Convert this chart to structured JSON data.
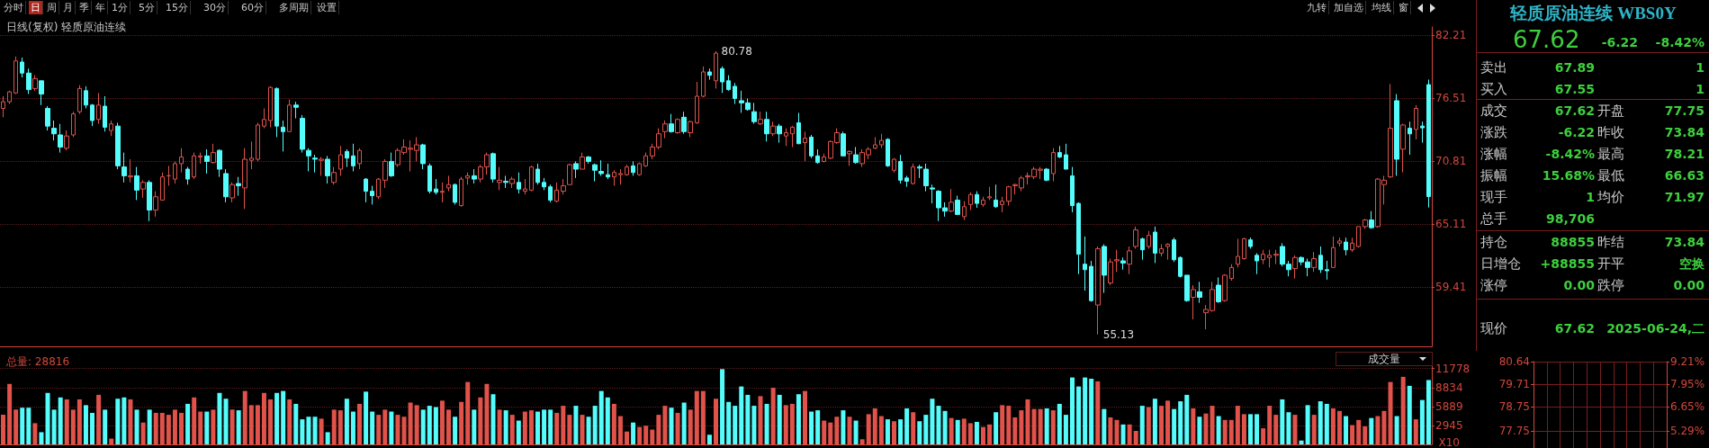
{
  "chart_data": [
    {
      "type": "candlestick",
      "title": "日线(复权) 轻质原油连续",
      "ylim": [
        54.06,
        82.97
      ],
      "yticks": [
        59.41,
        65.11,
        70.81,
        76.51,
        82.21
      ],
      "grid": "y",
      "tick_labels": "y",
      "annotations": [
        "80.78",
        "55.13"
      ],
      "colors": [
        "#e0524a",
        "#e0524a",
        "#e0524a",
        "#54fcfc",
        "#54fcfc",
        "#e0524a",
        "#54fcfc",
        "#54fcfc",
        "#54fcfc",
        "#54fcfc",
        "#e0524a",
        "#e0524a",
        "#e0524a",
        "#54fcfc",
        "#54fcfc",
        "#e0524a",
        "#54fcfc",
        "#e0524a",
        "#54fcfc",
        "#54fcfc",
        "#e0524a",
        "#54fcfc",
        "#e0524a",
        "#54fcfc",
        "#e0524a",
        "#e0524a",
        "#e0524a",
        "#e0524a",
        "#e0524a",
        "#54fcfc",
        "#e0524a",
        "#e0524a",
        "#54fcfc",
        "#e0524a",
        "#54fcfc",
        "#54fcfc",
        "#e0524a",
        "#54fcfc",
        "#e0524a",
        "#e0524a",
        "#e0524a",
        "#e0524a",
        "#e0524a",
        "#54fcfc",
        "#54fcfc",
        "#e0524a",
        "#54fcfc",
        "#54fcfc",
        "#54fcfc",
        "#54fcfc",
        "#e0524a",
        "#54fcfc",
        "#e0524a",
        "#e0524a",
        "#54fcfc",
        "#54fcfc",
        "#e0524a",
        "#54fcfc",
        "#54fcfc",
        "#e0524a",
        "#e0524a",
        "#54fcfc",
        "#e0524a",
        "#e0524a",
        "#e0524a",
        "#e0524a",
        "#54fcfc",
        "#54fcfc",
        "#54fcfc",
        "#e0524a",
        "#e0524a",
        "#54fcfc",
        "#e0524a",
        "#e0524a",
        "#54fcfc",
        "#e0524a",
        "#e0524a",
        "#54fcfc",
        "#e0524a",
        "#54fcfc",
        "#e0524a",
        "#54fcfc",
        "#e0524a",
        "#e0524a",
        "#54fcfc",
        "#54fcfc",
        "#54fcfc",
        "#e0524a",
        "#e0524a",
        "#e0524a",
        "#54fcfc",
        "#e0524a",
        "#54fcfc",
        "#54fcfc",
        "#54fcfc",
        "#54fcfc",
        "#e0524a",
        "#e0524a",
        "#e0524a",
        "#54fcfc",
        "#e0524a",
        "#e0524a",
        "#e0524a",
        "#e0524a",
        "#e0524a",
        "#54fcfc",
        "#e0524a",
        "#54fcfc",
        "#e0524a",
        "#e0524a",
        "#e0524a",
        "#54fcfc",
        "#e0524a",
        "#54fcfc",
        "#54fcfc",
        "#54fcfc",
        "#54fcfc",
        "#54fcfc",
        "#54fcfc",
        "#e0524a",
        "#54fcfc",
        "#e0524a",
        "#54fcfc",
        "#e0524a",
        "#e0524a",
        "#54fcfc",
        "#e0524a",
        "#54fcfc",
        "#54fcfc",
        "#e0524a",
        "#e0524a",
        "#e0524a",
        "#54fcfc",
        "#e0524a",
        "#54fcfc",
        "#e0524a",
        "#e0524a",
        "#e0524a",
        "#e0524a",
        "#54fcfc",
        "#e0524a",
        "#54fcfc",
        "#54fcfc",
        "#e0524a",
        "#54fcfc",
        "#54fcfc",
        "#54fcfc",
        "#54fcfc",
        "#54fcfc",
        "#e0524a",
        "#54fcfc",
        "#e0524a",
        "#e0524a",
        "#54fcfc",
        "#e0524a",
        "#e0524a",
        "#54fcfc",
        "#e0524a",
        "#e0524a",
        "#e0524a",
        "#e0524a",
        "#e0524a",
        "#e0524a",
        "#e0524a",
        "#54fcfc",
        "#e0524a",
        "#54fcfc",
        "#54fcfc",
        "#54fcfc",
        "#54fcfc",
        "#54fcfc",
        "#54fcfc",
        "#e0524a",
        "#54fcfc",
        "#e0524a",
        "#e0524a",
        "#54fcfc",
        "#e0524a",
        "#e0524a",
        "#54fcfc",
        "#e0524a",
        "#54fcfc",
        "#e0524a",
        "#e0524a",
        "#54fcfc",
        "#54fcfc",
        "#54fcfc",
        "#e0524a",
        "#54fcfc",
        "#e0524a",
        "#e0524a",
        "#54fcfc",
        "#e0524a",
        "#e0524a",
        "#e0524a",
        "#e0524a",
        "#54fcfc",
        "#54fcfc",
        "#e0524a",
        "#e0524a",
        "#e0524a",
        "#54fcfc",
        "#54fcfc",
        "#e0524a",
        "#54fcfc",
        "#54fcfc",
        "#e0524a",
        "#54fcfc",
        "#54fcfc",
        "#e0524a",
        "#e0524a",
        "#54fcfc",
        "#e0524a",
        "#e0524a",
        "#e0524a",
        "#54fcfc",
        "#e0524a",
        "#e0524a",
        "#e0524a",
        "#54fcfc",
        "#e0524a",
        "#54fcfc",
        "#e0524a",
        "#54fcfc",
        "#54fcfc"
      ],
      "categories": [
        null,
        null,
        null,
        null,
        null,
        null,
        null,
        null,
        null,
        null,
        null,
        null,
        null,
        null,
        null,
        null,
        null,
        null,
        null,
        null,
        null,
        null,
        null,
        null,
        null,
        null,
        null,
        null,
        null,
        null,
        null,
        null,
        null,
        null,
        null,
        null,
        null,
        null,
        null,
        null,
        null,
        null,
        null,
        null,
        null,
        null,
        null,
        null,
        null,
        null,
        null,
        null,
        null,
        null,
        null,
        null,
        null,
        null,
        null,
        null,
        null,
        null,
        null,
        null,
        null,
        null,
        null,
        null,
        null,
        null,
        null,
        null,
        null,
        null,
        null,
        null,
        null,
        null,
        null,
        null,
        null,
        null,
        null,
        null,
        null,
        null,
        null,
        null,
        null,
        null,
        null,
        null,
        null,
        null,
        null,
        null,
        null,
        null,
        null,
        null,
        null,
        null,
        null,
        null,
        null,
        null,
        null,
        null,
        null,
        null,
        null,
        null,
        null,
        null,
        null,
        null,
        null,
        null,
        null,
        null,
        null,
        null,
        null,
        null,
        null,
        null,
        null,
        null,
        null,
        null,
        null,
        null,
        null,
        null,
        null,
        null,
        null,
        null,
        null,
        null,
        null,
        null,
        null,
        null,
        null,
        null,
        null,
        null,
        null,
        null,
        null,
        null,
        null,
        null,
        null,
        null,
        null,
        null,
        null,
        null,
        null,
        null,
        null,
        null,
        null,
        null,
        null,
        null,
        null,
        null,
        null,
        null,
        null,
        null,
        null,
        null,
        null,
        null,
        null,
        null,
        null,
        null,
        null,
        null,
        null,
        null,
        null,
        null,
        null,
        null,
        null,
        null,
        null,
        null,
        null,
        null,
        null,
        null,
        null,
        null,
        null,
        null,
        null,
        null,
        null,
        null,
        null,
        null,
        null,
        null,
        null,
        null,
        null,
        null,
        null,
        null,
        null,
        null,
        null,
        null,
        null,
        null,
        null,
        null,
        null
      ],
      "ohlc": [
        [
          75.6,
          76.7,
          74.8,
          76.2
        ],
        [
          76.2,
          77.2,
          76.0,
          77.1
        ],
        [
          77.0,
          80.3,
          76.9,
          79.9
        ],
        [
          79.8,
          80.2,
          78.4,
          78.8
        ],
        [
          78.8,
          79.2,
          76.9,
          77.3
        ],
        [
          77.4,
          78.6,
          77.2,
          78.3
        ],
        [
          78.1,
          78.1,
          75.9,
          76.9
        ],
        [
          75.6,
          75.8,
          73.6,
          74.0
        ],
        [
          73.8,
          74.5,
          72.7,
          73.3
        ],
        [
          73.2,
          74.2,
          71.6,
          72.1
        ],
        [
          72.0,
          73.6,
          71.8,
          73.1
        ],
        [
          73.2,
          75.3,
          73.0,
          75.1
        ],
        [
          75.3,
          77.7,
          75.1,
          77.4
        ],
        [
          77.2,
          77.6,
          75.6,
          75.9
        ],
        [
          75.9,
          76.0,
          74.0,
          74.5
        ],
        [
          74.6,
          77.0,
          74.2,
          75.9
        ],
        [
          75.8,
          76.7,
          73.5,
          73.9
        ],
        [
          73.6,
          74.5,
          73.1,
          74.2
        ],
        [
          74.0,
          74.3,
          70.1,
          70.4
        ],
        [
          70.3,
          71.6,
          68.9,
          69.5
        ],
        [
          69.4,
          71.0,
          68.9,
          69.5
        ],
        [
          69.5,
          70.3,
          67.3,
          68.2
        ],
        [
          68.3,
          69.1,
          67.5,
          68.9
        ],
        [
          68.9,
          69.1,
          65.4,
          66.4
        ],
        [
          66.4,
          68.1,
          65.8,
          67.6
        ],
        [
          67.3,
          69.8,
          67.3,
          69.4
        ],
        [
          69.5,
          70.4,
          68.6,
          69.5
        ],
        [
          69.2,
          70.8,
          68.8,
          70.6
        ],
        [
          70.6,
          72.0,
          69.8,
          71.2
        ],
        [
          70.1,
          70.3,
          68.7,
          69.2
        ],
        [
          69.4,
          71.6,
          69.2,
          71.3
        ],
        [
          71.2,
          71.6,
          70.6,
          71.3
        ],
        [
          71.3,
          71.9,
          69.7,
          70.8
        ],
        [
          70.7,
          72.4,
          70.6,
          71.6
        ],
        [
          71.8,
          71.9,
          69.4,
          70.1
        ],
        [
          69.7,
          70.1,
          67.1,
          67.6
        ],
        [
          67.5,
          68.9,
          67.1,
          68.7
        ],
        [
          68.8,
          69.4,
          67.7,
          68.6
        ],
        [
          68.4,
          72.0,
          66.5,
          71.0
        ],
        [
          70.9,
          72.6,
          70.1,
          71.1
        ],
        [
          71.0,
          74.3,
          70.8,
          74.1
        ],
        [
          74.0,
          75.6,
          73.8,
          74.6
        ],
        [
          74.5,
          77.6,
          73.9,
          77.5
        ],
        [
          77.4,
          77.5,
          73.0,
          74.0
        ],
        [
          73.9,
          74.5,
          71.7,
          73.5
        ],
        [
          73.5,
          76.4,
          73.5,
          75.9
        ],
        [
          75.9,
          76.2,
          74.7,
          75.7
        ],
        [
          74.7,
          75.0,
          71.6,
          71.9
        ],
        [
          71.8,
          72.0,
          69.9,
          71.3
        ],
        [
          71.1,
          71.4,
          69.8,
          71.0
        ],
        [
          70.9,
          71.2,
          69.5,
          71.0
        ],
        [
          71.0,
          71.3,
          68.8,
          69.5
        ],
        [
          68.9,
          70.3,
          68.7,
          69.8
        ],
        [
          70.1,
          72.2,
          69.5,
          71.4
        ],
        [
          71.7,
          71.9,
          70.3,
          71.1
        ],
        [
          71.3,
          72.4,
          69.9,
          70.4
        ],
        [
          70.6,
          72.0,
          70.1,
          71.8
        ],
        [
          69.2,
          69.3,
          67.1,
          68.1
        ],
        [
          68.1,
          68.6,
          66.9,
          67.7
        ],
        [
          67.6,
          69.3,
          67.4,
          69.2
        ],
        [
          69.1,
          71.0,
          68.4,
          70.8
        ],
        [
          70.8,
          71.6,
          69.4,
          69.5
        ],
        [
          70.5,
          72.0,
          70.3,
          71.8
        ],
        [
          71.6,
          72.8,
          71.4,
          72.1
        ],
        [
          71.9,
          72.7,
          69.9,
          72.0
        ],
        [
          71.8,
          73.0,
          70.8,
          72.3
        ],
        [
          72.3,
          72.4,
          70.1,
          70.6
        ],
        [
          70.4,
          70.6,
          67.9,
          68.1
        ],
        [
          68.3,
          69.2,
          67.8,
          68.0
        ],
        [
          68.0,
          68.9,
          67.1,
          68.1
        ],
        [
          68.4,
          69.5,
          68.1,
          68.7
        ],
        [
          68.7,
          68.8,
          66.9,
          67.1
        ],
        [
          66.8,
          69.4,
          66.7,
          69.2
        ],
        [
          69.3,
          69.8,
          68.7,
          69.5
        ],
        [
          69.5,
          70.1,
          68.8,
          69.2
        ],
        [
          69.2,
          70.5,
          68.9,
          70.3
        ],
        [
          70.3,
          71.6,
          69.6,
          71.4
        ],
        [
          71.5,
          71.6,
          68.9,
          69.2
        ],
        [
          68.9,
          70.3,
          68.2,
          69.1
        ],
        [
          69.0,
          69.5,
          68.4,
          68.9
        ],
        [
          68.8,
          69.4,
          68.4,
          69.2
        ],
        [
          68.9,
          69.8,
          67.9,
          68.3
        ],
        [
          68.1,
          69.2,
          67.8,
          68.3
        ],
        [
          68.2,
          70.4,
          68.1,
          70.3
        ],
        [
          70.1,
          70.6,
          68.7,
          68.9
        ],
        [
          68.9,
          69.3,
          68.2,
          68.5
        ],
        [
          68.5,
          68.7,
          67.1,
          67.3
        ],
        [
          67.2,
          68.9,
          67.1,
          68.2
        ],
        [
          68.1,
          69.2,
          67.8,
          68.6
        ],
        [
          68.7,
          70.6,
          68.7,
          70.5
        ],
        [
          70.6,
          70.8,
          69.3,
          70.1
        ],
        [
          70.1,
          71.6,
          70.1,
          71.2
        ],
        [
          71.2,
          71.3,
          70.6,
          70.8
        ],
        [
          70.5,
          70.6,
          69.0,
          70.0
        ],
        [
          69.9,
          70.9,
          69.5,
          69.7
        ],
        [
          69.6,
          70.6,
          69.2,
          69.4
        ],
        [
          69.4,
          70.0,
          68.6,
          69.8
        ],
        [
          69.6,
          70.1,
          68.7,
          69.7
        ],
        [
          69.6,
          70.5,
          69.5,
          70.3
        ],
        [
          70.4,
          70.8,
          69.5,
          69.8
        ],
        [
          69.6,
          70.7,
          69.5,
          70.6
        ],
        [
          70.4,
          71.6,
          70.3,
          71.3
        ],
        [
          71.3,
          72.4,
          71.0,
          72.1
        ],
        [
          72.1,
          73.8,
          71.9,
          73.3
        ],
        [
          73.5,
          74.5,
          72.9,
          74.2
        ],
        [
          74.2,
          75.1,
          73.4,
          73.5
        ],
        [
          73.4,
          74.7,
          73.3,
          74.6
        ],
        [
          74.8,
          75.3,
          73.3,
          73.5
        ],
        [
          73.4,
          74.5,
          73.0,
          74.4
        ],
        [
          74.3,
          78.0,
          74.2,
          76.7
        ],
        [
          76.7,
          79.4,
          76.6,
          78.9
        ],
        [
          78.9,
          79.2,
          78.2,
          78.6
        ],
        [
          78.1,
          80.78,
          77.4,
          80.6
        ],
        [
          79.2,
          79.4,
          77.0,
          78.0
        ],
        [
          78.1,
          78.6,
          77.2,
          77.3
        ],
        [
          77.6,
          77.9,
          76.0,
          76.5
        ],
        [
          76.3,
          77.2,
          75.2,
          76.1
        ],
        [
          76.1,
          76.5,
          75.4,
          75.5
        ],
        [
          75.3,
          76.1,
          74.2,
          74.4
        ],
        [
          74.2,
          75.3,
          74.1,
          74.6
        ],
        [
          74.6,
          75.3,
          72.6,
          73.3
        ],
        [
          73.3,
          74.4,
          73.1,
          74.0
        ],
        [
          74.0,
          74.2,
          72.5,
          73.3
        ],
        [
          73.1,
          73.8,
          72.2,
          73.4
        ],
        [
          73.3,
          74.0,
          72.1,
          73.9
        ],
        [
          74.3,
          75.2,
          72.4,
          72.4
        ],
        [
          72.5,
          73.5,
          70.8,
          72.9
        ],
        [
          73.0,
          73.2,
          71.1,
          71.3
        ],
        [
          71.3,
          71.9,
          70.6,
          70.7
        ],
        [
          70.8,
          71.5,
          70.7,
          71.2
        ],
        [
          71.1,
          72.7,
          71.0,
          72.6
        ],
        [
          72.5,
          73.8,
          72.4,
          73.4
        ],
        [
          73.3,
          73.5,
          71.3,
          71.3
        ],
        [
          71.5,
          71.8,
          70.4,
          71.7
        ],
        [
          71.4,
          72.1,
          70.6,
          70.7
        ],
        [
          70.6,
          71.9,
          70.3,
          71.6
        ],
        [
          71.4,
          72.1,
          71.0,
          71.9
        ],
        [
          72.0,
          73.0,
          71.9,
          72.3
        ],
        [
          72.3,
          73.3,
          72.0,
          72.7
        ],
        [
          72.8,
          72.9,
          70.3,
          70.4
        ],
        [
          70.0,
          71.1,
          69.8,
          71.0
        ],
        [
          70.8,
          71.4,
          68.8,
          69.1
        ],
        [
          69.3,
          69.5,
          68.5,
          69.0
        ],
        [
          68.8,
          70.6,
          68.7,
          70.3
        ],
        [
          70.3,
          70.5,
          69.3,
          70.2
        ],
        [
          70.1,
          70.6,
          68.1,
          68.6
        ],
        [
          68.4,
          68.7,
          67.0,
          68.3
        ],
        [
          68.1,
          68.2,
          65.4,
          66.6
        ],
        [
          66.6,
          67.1,
          65.8,
          66.3
        ],
        [
          66.3,
          68.3,
          66.2,
          67.1
        ],
        [
          67.3,
          67.7,
          66.0,
          66.0
        ],
        [
          65.8,
          67.2,
          65.5,
          66.7
        ],
        [
          66.9,
          68.0,
          66.4,
          67.8
        ],
        [
          67.8,
          68.1,
          66.6,
          67.0
        ],
        [
          66.9,
          67.6,
          66.7,
          67.3
        ],
        [
          67.5,
          68.5,
          67.3,
          67.6
        ],
        [
          67.3,
          68.7,
          66.6,
          66.7
        ],
        [
          66.9,
          67.6,
          66.2,
          67.2
        ],
        [
          67.2,
          68.6,
          66.8,
          68.5
        ],
        [
          68.6,
          68.8,
          67.8,
          68.7
        ],
        [
          68.4,
          69.5,
          68.1,
          69.3
        ],
        [
          69.4,
          69.8,
          68.7,
          69.5
        ],
        [
          69.4,
          70.3,
          69.2,
          70.1
        ],
        [
          70.0,
          70.3,
          69.2,
          70.1
        ],
        [
          70.1,
          70.2,
          69.0,
          69.1
        ],
        [
          69.7,
          72.0,
          69.0,
          71.6
        ],
        [
          71.6,
          72.2,
          71.1,
          71.2
        ],
        [
          71.4,
          72.4,
          70.1,
          70.1
        ],
        [
          69.5,
          70.3,
          66.2,
          66.8
        ],
        [
          67.0,
          67.1,
          60.6,
          62.4
        ],
        [
          61.5,
          64.0,
          59.1,
          61.0
        ],
        [
          61.3,
          61.8,
          58.1,
          58.2
        ],
        [
          57.8,
          63.1,
          55.13,
          62.9
        ],
        [
          63.1,
          63.3,
          58.9,
          60.5
        ],
        [
          59.8,
          62.0,
          59.6,
          61.7
        ],
        [
          61.8,
          62.8,
          60.8,
          61.9
        ],
        [
          61.8,
          62.1,
          61.0,
          61.6
        ],
        [
          61.5,
          63.1,
          60.6,
          62.7
        ],
        [
          63.1,
          64.9,
          62.9,
          64.6
        ],
        [
          63.8,
          63.9,
          61.9,
          62.8
        ],
        [
          63.1,
          64.5,
          62.9,
          64.1
        ],
        [
          64.4,
          64.9,
          61.6,
          62.5
        ],
        [
          62.5,
          63.3,
          62.2,
          62.9
        ],
        [
          63.1,
          63.4,
          61.9,
          63.3
        ],
        [
          63.7,
          63.9,
          61.7,
          61.9
        ],
        [
          62.1,
          62.2,
          60.3,
          60.4
        ],
        [
          60.5,
          60.5,
          58.1,
          58.2
        ],
        [
          58.5,
          59.6,
          56.5,
          59.2
        ],
        [
          59.0,
          59.9,
          58.0,
          58.5
        ],
        [
          57.1,
          57.8,
          55.6,
          57.4
        ],
        [
          57.3,
          59.9,
          57.2,
          59.2
        ],
        [
          59.6,
          60.3,
          58.0,
          58.1
        ],
        [
          58.2,
          60.6,
          58.1,
          60.5
        ],
        [
          60.2,
          61.5,
          60.0,
          61.2
        ],
        [
          61.5,
          63.8,
          61.2,
          62.2
        ],
        [
          62.0,
          63.9,
          61.9,
          63.8
        ],
        [
          63.7,
          63.9,
          62.9,
          63.1
        ],
        [
          62.3,
          62.5,
          60.6,
          61.8
        ],
        [
          61.9,
          62.8,
          61.5,
          62.4
        ],
        [
          62.1,
          62.8,
          61.2,
          62.3
        ],
        [
          62.3,
          62.8,
          61.5,
          62.4
        ],
        [
          63.1,
          63.4,
          61.3,
          61.5
        ],
        [
          61.5,
          61.8,
          60.4,
          61.0
        ],
        [
          61.1,
          62.3,
          60.2,
          62.1
        ],
        [
          62.1,
          62.2,
          61.4,
          61.7
        ],
        [
          61.7,
          62.0,
          60.4,
          61.2
        ],
        [
          61.2,
          62.6,
          60.8,
          62.0
        ],
        [
          62.3,
          63.1,
          60.7,
          61.0
        ],
        [
          61.0,
          61.8,
          60.1,
          60.9
        ],
        [
          61.2,
          64.0,
          61.2,
          63.0
        ],
        [
          63.4,
          63.9,
          63.1,
          63.6
        ],
        [
          63.5,
          63.9,
          62.3,
          62.8
        ],
        [
          62.8,
          63.9,
          62.6,
          63.4
        ],
        [
          63.1,
          64.9,
          63.0,
          64.9
        ],
        [
          64.9,
          65.6,
          64.7,
          65.5
        ],
        [
          65.5,
          66.3,
          64.7,
          64.8
        ],
        [
          64.9,
          69.3,
          64.8,
          69.2
        ],
        [
          68.7,
          69.5,
          66.9,
          69.1
        ],
        [
          69.4,
          77.8,
          69.3,
          73.8
        ],
        [
          76.3,
          76.9,
          69.5,
          71.0
        ],
        [
          71.9,
          74.2,
          69.8,
          74.1
        ],
        [
          73.8,
          74.4,
          71.4,
          73.3
        ],
        [
          73.7,
          75.9,
          72.8,
          75.6
        ],
        [
          74.0,
          74.4,
          72.5,
          73.84
        ],
        [
          77.75,
          78.21,
          66.63,
          67.62
        ]
      ]
    },
    {
      "type": "bar",
      "title": "总量: 28816",
      "ylabel": "X10",
      "ylim": [
        0,
        13700
      ],
      "yticks": [
        2945,
        5889,
        8834,
        11778
      ],
      "grid": "y",
      "tick_labels": "y",
      "annotations": [
        "成交量"
      ],
      "categories": [
        null,
        null,
        null,
        null,
        null,
        null,
        null,
        null,
        null,
        null,
        null,
        null,
        null,
        null,
        null,
        null,
        null,
        null,
        null,
        null,
        null,
        null,
        null,
        null,
        null,
        null,
        null,
        null,
        null,
        null,
        null,
        null,
        null,
        null,
        null,
        null,
        null,
        null,
        null,
        null,
        null,
        null,
        null,
        null,
        null,
        null,
        null,
        null,
        null,
        null,
        null,
        null,
        null,
        null,
        null,
        null,
        null,
        null,
        null,
        null,
        null,
        null,
        null,
        null,
        null,
        null,
        null,
        null,
        null,
        null,
        null,
        null,
        null,
        null,
        null,
        null,
        null,
        null,
        null,
        null,
        null,
        null,
        null,
        null,
        null,
        null,
        null,
        null,
        null,
        null,
        null,
        null,
        null,
        null,
        null,
        null,
        null,
        null,
        null,
        null,
        null,
        null,
        null,
        null,
        null,
        null,
        null,
        null,
        null,
        null,
        null,
        null,
        null,
        null,
        null,
        null,
        null,
        null,
        null,
        null,
        null,
        null,
        null,
        null,
        null,
        null,
        null,
        null,
        null,
        null,
        null,
        null,
        null,
        null,
        null,
        null,
        null,
        null,
        null,
        null,
        null,
        null,
        null,
        null,
        null,
        null,
        null,
        null,
        null,
        null,
        null,
        null,
        null,
        null,
        null,
        null,
        null,
        null,
        null,
        null,
        null,
        null,
        null,
        null,
        null,
        null,
        null,
        null,
        null,
        null,
        null,
        null,
        null,
        null,
        null,
        null,
        null,
        null,
        null,
        null,
        null,
        null,
        null,
        null,
        null,
        null,
        null,
        null,
        null,
        null,
        null,
        null,
        null,
        null,
        null,
        null,
        null,
        null,
        null,
        null,
        null,
        null,
        null,
        null,
        null,
        null,
        null,
        null,
        null,
        null,
        null,
        null,
        null,
        null,
        null,
        null,
        null,
        null,
        null,
        null,
        null,
        null,
        null,
        null,
        null
      ],
      "values": [
        4600,
        9400,
        5400,
        5700,
        5700,
        3300,
        1900,
        8000,
        5400,
        7300,
        7000,
        5400,
        7000,
        6100,
        4900,
        7700,
        5400,
        900,
        7100,
        7300,
        7000,
        5400,
        3400,
        5400,
        4900,
        4900,
        4600,
        5400,
        4900,
        6300,
        7300,
        5100,
        5100,
        5400,
        8000,
        7100,
        5400,
        5300,
        8300,
        6100,
        6100,
        8000,
        7000,
        8000,
        8300,
        7000,
        6300,
        3900,
        4300,
        4300,
        4000,
        1900,
        5400,
        5300,
        7100,
        5100,
        6300,
        8200,
        5100,
        4600,
        5400,
        5100,
        4600,
        4300,
        6500,
        6100,
        5400,
        6000,
        5800,
        6800,
        5400,
        4300,
        6600,
        9700,
        5400,
        7300,
        9400,
        7800,
        5400,
        5300,
        4600,
        3700,
        5100,
        5300,
        5100,
        5400,
        5400,
        4900,
        6000,
        4600,
        6000,
        4600,
        4300,
        6000,
        8300,
        7300,
        6300,
        4400,
        2000,
        3400,
        2700,
        2900,
        2300,
        4600,
        6000,
        5700,
        4900,
        6500,
        5400,
        8300,
        8300,
        1500,
        7100,
        11700,
        6600,
        6000,
        9000,
        7700,
        6000,
        7500,
        6300,
        8800,
        7700,
        6100,
        6300,
        7800,
        8300,
        5100,
        5300,
        3700,
        3400,
        4300,
        5300,
        4300,
        3700,
        800,
        4700,
        5600,
        4400,
        3900,
        3600,
        3900,
        5600,
        5000,
        3600,
        4600,
        7100,
        6000,
        5200,
        4100,
        3800,
        4000,
        3300,
        3500,
        2700,
        3100,
        5000,
        6100,
        6000,
        4200,
        5300,
        7000,
        5500,
        5500,
        5600,
        5300,
        6300,
        4600,
        10400,
        9000,
        10400,
        10200,
        9800,
        5500,
        4200,
        3800,
        3100,
        3100,
        2100,
        6000,
        5800,
        7100,
        6000,
        6800,
        5500,
        6700,
        7700,
        5600,
        4300,
        4800,
        6000,
        4400,
        3800,
        3800,
        6000,
        4700,
        4700,
        4700,
        2500,
        6000,
        4600,
        7000,
        5000,
        4600,
        600,
        6100,
        4600,
        6700,
        6300,
        5600,
        5200,
        4400,
        3000,
        3800,
        2800,
        4100,
        4400,
        5200,
        9700,
        4400,
        10500,
        9100,
        3900,
        6900,
        10000
      ],
      "colors": [
        "#e0524a",
        "#e0524a",
        "#e0524a",
        "#54fcfc",
        "#54fcfc",
        "#e0524a",
        "#54fcfc",
        "#54fcfc",
        "#54fcfc",
        "#54fcfc",
        "#e0524a",
        "#e0524a",
        "#e0524a",
        "#54fcfc",
        "#54fcfc",
        "#e0524a",
        "#54fcfc",
        "#e0524a",
        "#54fcfc",
        "#54fcfc",
        "#e0524a",
        "#54fcfc",
        "#e0524a",
        "#54fcfc",
        "#e0524a",
        "#e0524a",
        "#e0524a",
        "#e0524a",
        "#e0524a",
        "#54fcfc",
        "#e0524a",
        "#e0524a",
        "#54fcfc",
        "#e0524a",
        "#54fcfc",
        "#54fcfc",
        "#e0524a",
        "#54fcfc",
        "#e0524a",
        "#e0524a",
        "#e0524a",
        "#e0524a",
        "#e0524a",
        "#54fcfc",
        "#54fcfc",
        "#e0524a",
        "#54fcfc",
        "#54fcfc",
        "#54fcfc",
        "#54fcfc",
        "#e0524a",
        "#54fcfc",
        "#e0524a",
        "#e0524a",
        "#54fcfc",
        "#54fcfc",
        "#e0524a",
        "#54fcfc",
        "#54fcfc",
        "#e0524a",
        "#e0524a",
        "#54fcfc",
        "#e0524a",
        "#e0524a",
        "#e0524a",
        "#e0524a",
        "#54fcfc",
        "#54fcfc",
        "#54fcfc",
        "#e0524a",
        "#e0524a",
        "#54fcfc",
        "#e0524a",
        "#e0524a",
        "#54fcfc",
        "#e0524a",
        "#e0524a",
        "#54fcfc",
        "#e0524a",
        "#54fcfc",
        "#e0524a",
        "#54fcfc",
        "#e0524a",
        "#e0524a",
        "#54fcfc",
        "#54fcfc",
        "#54fcfc",
        "#e0524a",
        "#e0524a",
        "#e0524a",
        "#54fcfc",
        "#e0524a",
        "#54fcfc",
        "#54fcfc",
        "#54fcfc",
        "#54fcfc",
        "#e0524a",
        "#e0524a",
        "#e0524a",
        "#54fcfc",
        "#e0524a",
        "#e0524a",
        "#e0524a",
        "#e0524a",
        "#e0524a",
        "#54fcfc",
        "#e0524a",
        "#54fcfc",
        "#e0524a",
        "#e0524a",
        "#e0524a",
        "#54fcfc",
        "#e0524a",
        "#54fcfc",
        "#54fcfc",
        "#54fcfc",
        "#54fcfc",
        "#54fcfc",
        "#54fcfc",
        "#e0524a",
        "#54fcfc",
        "#e0524a",
        "#54fcfc",
        "#e0524a",
        "#e0524a",
        "#54fcfc",
        "#e0524a",
        "#54fcfc",
        "#54fcfc",
        "#e0524a",
        "#e0524a",
        "#e0524a",
        "#54fcfc",
        "#e0524a",
        "#54fcfc",
        "#e0524a",
        "#e0524a",
        "#e0524a",
        "#e0524a",
        "#54fcfc",
        "#e0524a",
        "#54fcfc",
        "#54fcfc",
        "#e0524a",
        "#54fcfc",
        "#54fcfc",
        "#54fcfc",
        "#54fcfc",
        "#54fcfc",
        "#e0524a",
        "#54fcfc",
        "#e0524a",
        "#e0524a",
        "#54fcfc",
        "#e0524a",
        "#e0524a",
        "#54fcfc",
        "#e0524a",
        "#e0524a",
        "#e0524a",
        "#e0524a",
        "#e0524a",
        "#e0524a",
        "#e0524a",
        "#54fcfc",
        "#e0524a",
        "#54fcfc",
        "#54fcfc",
        "#54fcfc",
        "#54fcfc",
        "#54fcfc",
        "#54fcfc",
        "#e0524a",
        "#54fcfc",
        "#e0524a",
        "#e0524a",
        "#54fcfc",
        "#e0524a",
        "#e0524a",
        "#54fcfc",
        "#e0524a",
        "#54fcfc",
        "#e0524a",
        "#e0524a",
        "#54fcfc",
        "#54fcfc",
        "#54fcfc",
        "#e0524a",
        "#54fcfc",
        "#e0524a",
        "#e0524a",
        "#54fcfc",
        "#e0524a",
        "#e0524a",
        "#e0524a",
        "#e0524a",
        "#54fcfc",
        "#54fcfc",
        "#e0524a",
        "#e0524a",
        "#e0524a",
        "#54fcfc",
        "#54fcfc",
        "#e0524a",
        "#54fcfc",
        "#54fcfc",
        "#e0524a",
        "#54fcfc",
        "#54fcfc",
        "#e0524a",
        "#e0524a",
        "#54fcfc",
        "#e0524a",
        "#e0524a",
        "#e0524a",
        "#54fcfc",
        "#e0524a",
        "#e0524a",
        "#e0524a",
        "#54fcfc",
        "#e0524a",
        "#54fcfc",
        "#e0524a",
        "#54fcfc",
        "#54fcfc"
      ]
    },
    {
      "type": "other",
      "title": "轻质原油连续 WBS0Y",
      "annotations": [
        "67.62 -6.22 -8.42%",
        "卖出 67.89 1",
        "买入 67.55 1",
        "成交 67.62 开盘 77.75",
        "涨跌 -6.22 昨收 73.84",
        "涨幅 -8.42% 最高 78.21",
        "振幅 15.68% 最低 66.63",
        "现手 1 均价 71.97",
        "总手 98,706",
        "持仓 88855 昨结 73.84",
        "日增仓 +88855 开平 空换",
        "涨停 0.00 跌停 0.00",
        "现价 67.62 2025-06-24,二"
      ]
    },
    {
      "type": "other",
      "annotations": [
        "分时 日 周 月 季 年 1分 5分 15分 30分 60分 多周期 设置",
        "九转 加自选 均线 窗"
      ]
    },
    {
      "type": "line",
      "categories": [
        null,
        null,
        null,
        null,
        null,
        null,
        null,
        null,
        null,
        null,
        null
      ],
      "ylim": [
        77.04,
        80.64
      ],
      "yticks": [
        77.75,
        78.75,
        79.71,
        80.64
      ],
      "y2lim": [
        4.33,
        9.21
      ],
      "y2ticks": [
        {
          "value": 5.29,
          "label": "5.29%"
        },
        {
          "value": 6.65,
          "label": "6.65%"
        },
        {
          "value": 7.95,
          "label": "7.95%"
        },
        {
          "value": 9.21,
          "label": "9.21%"
        }
      ],
      "grid": true,
      "tick_labels": "y"
    }
  ]
}
